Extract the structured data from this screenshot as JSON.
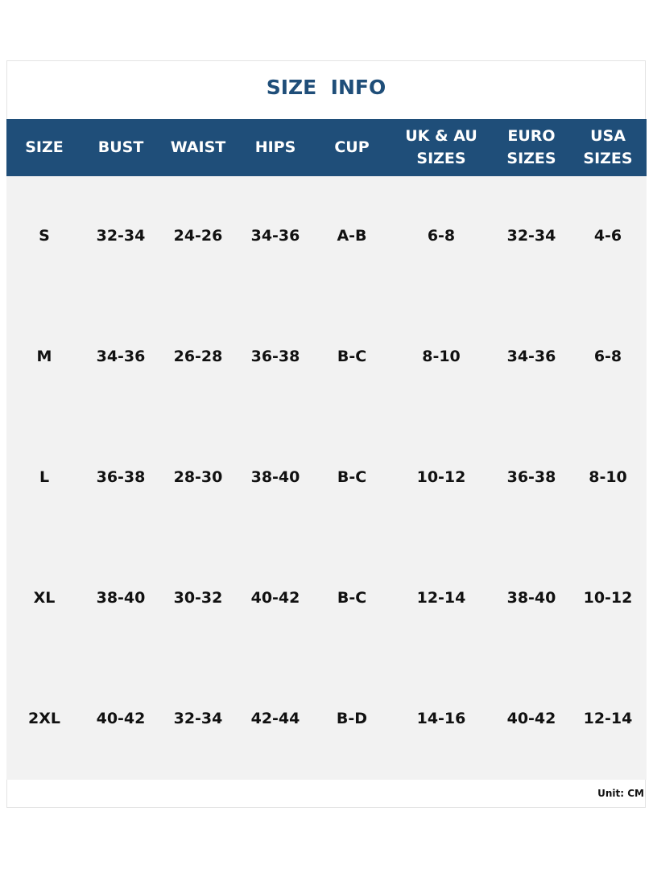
{
  "title": "SIZE  INFO",
  "table": {
    "header": [
      [
        "SIZE"
      ],
      [
        "BUST"
      ],
      [
        "WAIST"
      ],
      [
        "HIPS"
      ],
      [
        "CUP"
      ],
      [
        "UK & AU",
        "SIZES"
      ],
      [
        "EURO",
        "SIZES"
      ],
      [
        "USA",
        "SIZES"
      ]
    ],
    "rows": [
      [
        "S",
        "32-34",
        "24-26",
        "34-36",
        "A-B",
        "6-8",
        "32-34",
        "4-6"
      ],
      [
        "M",
        "34-36",
        "26-28",
        "36-38",
        "B-C",
        "8-10",
        "34-36",
        "6-8"
      ],
      [
        "L",
        "36-38",
        "28-30",
        "38-40",
        "B-C",
        "10-12",
        "36-38",
        "8-10"
      ],
      [
        "XL",
        "38-40",
        "30-32",
        "40-42",
        "B-C",
        "12-14",
        "38-40",
        "10-12"
      ],
      [
        "2XL",
        "40-42",
        "32-34",
        "42-44",
        "B-D",
        "14-16",
        "40-42",
        "12-14"
      ]
    ]
  },
  "footer": "Unit: CM"
}
